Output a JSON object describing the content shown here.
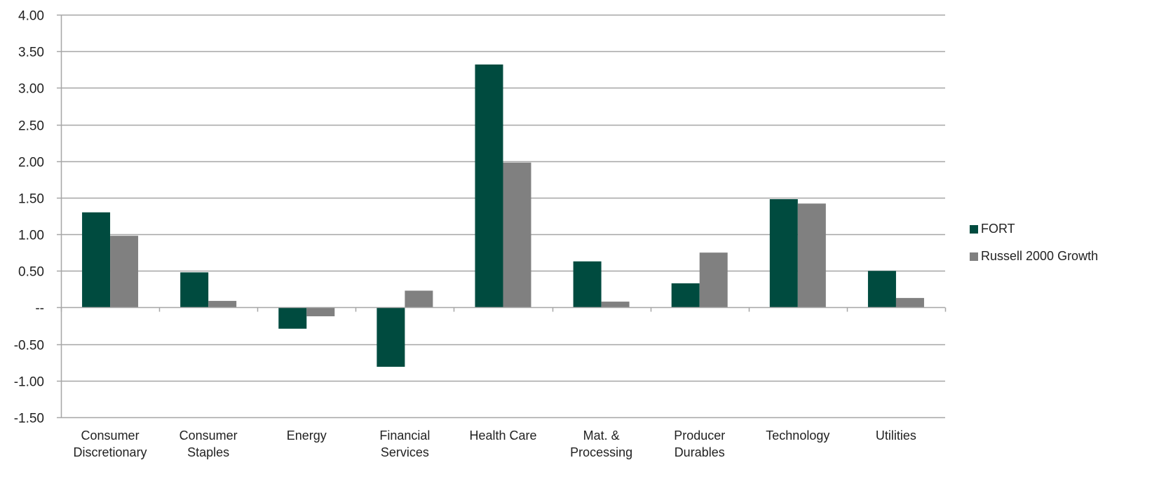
{
  "chart_data": {
    "type": "bar",
    "title": "",
    "xlabel": "",
    "ylabel": "",
    "categories": [
      [
        "Consumer",
        "Discretionary"
      ],
      [
        "Consumer",
        "Staples"
      ],
      [
        "Energy"
      ],
      [
        "Financial",
        "Services"
      ],
      [
        "Health Care"
      ],
      [
        "Mat. &",
        "Processing"
      ],
      [
        "Producer",
        "Durables"
      ],
      [
        "Technology"
      ],
      [
        "Utilities"
      ]
    ],
    "series": [
      {
        "name": "FORT",
        "color": "#004B3F",
        "values": [
          1.3,
          0.48,
          -0.29,
          -0.81,
          3.32,
          0.63,
          0.33,
          1.48,
          0.5
        ]
      },
      {
        "name": "Russell 2000 Growth",
        "color": "#808080",
        "values": [
          0.98,
          0.09,
          -0.12,
          0.23,
          1.98,
          0.08,
          0.75,
          1.42,
          0.13
        ]
      }
    ],
    "ylim": [
      -1.5,
      4.0
    ],
    "yticks": [
      4.0,
      3.5,
      3.0,
      2.5,
      2.0,
      1.5,
      1.0,
      0.5,
      0,
      -0.5,
      -1.0,
      -1.5
    ],
    "ytick_labels": [
      "4.00",
      "3.50",
      "3.00",
      "2.50",
      "2.00",
      "1.50",
      "1.00",
      "0.50",
      "--",
      "-0.50",
      "-1.00",
      "-1.50"
    ],
    "grid": true,
    "legend": "right"
  }
}
